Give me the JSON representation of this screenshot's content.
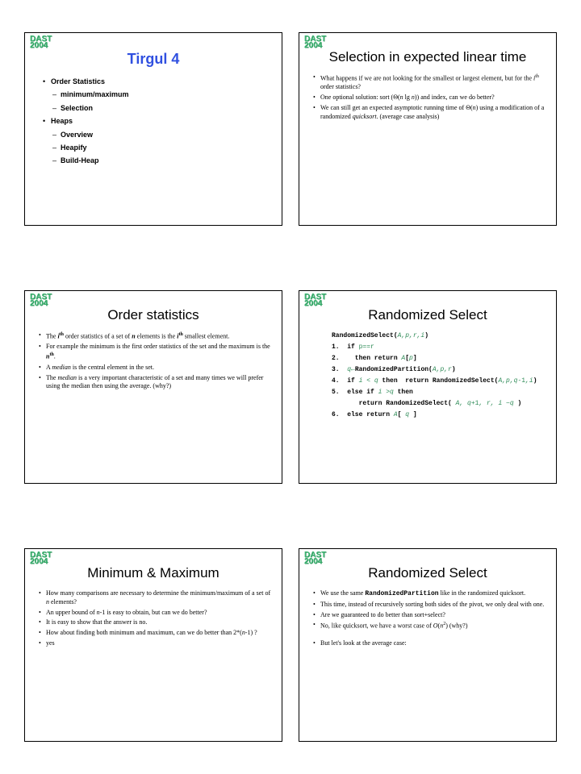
{
  "logo_text": "DAST",
  "logo_sub": "2004",
  "slides": [
    {
      "title_style": "blue",
      "title": "Tirgul 4",
      "content_style": "arial",
      "lines": [
        {
          "level": "b1a",
          "html": "<span class='bold'>Order Statistics</span>"
        },
        {
          "level": "b2a",
          "html": "<span class='bold'>minimum/maximum</span>"
        },
        {
          "level": "b2a",
          "html": "<span class='bold'>Selection</span>"
        },
        {
          "level": "b1a",
          "html": "<span class='bold'>Heaps</span>"
        },
        {
          "level": "b2a",
          "html": "<span class='bold'>Overview</span>"
        },
        {
          "level": "b2a",
          "html": "<span class='bold'>Heapify</span>"
        },
        {
          "level": "b2a",
          "html": "<span class='bold'>Build-Heap</span>"
        }
      ]
    },
    {
      "title_style": "black",
      "title": "Selection in expected linear time",
      "content_style": "times",
      "lines": [
        {
          "level": "b1",
          "html": "What happens if we are not looking for the smallest or largest element, but for the <span class='italic'>i</span><span class='sup'>th</span> order statistics?"
        },
        {
          "level": "b1",
          "html": "One optional solution: sort (Θ(<span class='italic'>n</span> lg <span class='italic'>n</span>)) and index, can we do better?"
        },
        {
          "level": "b1",
          "html": "We can still get an expected asymptotic running time of Θ(<span class='italic'>n</span>) using a modification of a randomized <span class='italic'>quicksort</span>. (average case analysis)"
        }
      ]
    },
    {
      "title_style": "black",
      "title": "Order statistics",
      "content_style": "times",
      "lines": [
        {
          "level": "b1",
          "html": "The <span class='bold italic'>i</span><span class='bold sup'>th</span> order statistics of a set of <span class='bold italic'>n</span> elements is the <span class='bold italic'>i</span><span class='bold sup'>th</span> smallest element."
        },
        {
          "level": "b1",
          "html": "For example the minimum is the first order statistics of the set and the maximum is the <span class='bold italic'>n</span><span class='bold sup'>th</span>."
        },
        {
          "level": "b1",
          "html": "A <span class='italic'>median</span> is the central element in the set."
        },
        {
          "level": "b1",
          "html": "The <span class='italic'>median</span> is a very important characteristic of a set and many times we will prefer using the median then using the average. (why?)"
        }
      ]
    },
    {
      "title_style": "black",
      "title": "Randomized Select",
      "content_style": "code",
      "lines": [
        {
          "html": "<span class='bold'>RandomizedSelect(</span><span class='cgreen italic'>A,p,r,i</span><span class='bold'>)</span>"
        },
        {
          "html": "<span class='bold'>1.  if </span><span class='cgreen'>p==r</span>"
        },
        {
          "html": "<span class='bold'>2.    then return </span><span class='cgreen italic'>A</span><span class='bold'>[</span><span class='cgreen italic'>p</span><span class='bold'>]</span>"
        },
        {
          "html": "<span class='bold'>3.  </span><span class='cgreen italic'>q</span><span class='cgreen'>←</span><span class='bold'>RandomizedPartition(</span><span class='cgreen italic'>A,p,r</span><span class='bold'>)</span>"
        },
        {
          "html": "<span class='bold'>4.  if </span><span class='cgreen italic'>i &lt; q</span><span class='bold'> then  return RandomizedSelect(</span><span class='cgreen italic'>A,p,q</span><span class='cgreen'>-1</span><span class='cgreen italic'>,i</span><span class='bold'>)</span>"
        },
        {
          "html": "<span class='bold'>5.  else if </span><span class='cgreen italic'>i &gt;q</span><span class='bold'> then</span>"
        },
        {
          "html": "       <span class='bold'>return RandomizedSelect(</span><span class='cgreen italic'> A, q</span><span class='cgreen'>+1</span><span class='cgreen italic'>, r, i −q </span><span class='bold'>)</span>"
        },
        {
          "html": "<span class='bold'>6.  else return </span><span class='cgreen italic'>A</span><span class='bold'>[</span><span class='cgreen italic'> q </span><span class='bold'>]</span>"
        }
      ]
    },
    {
      "title_style": "black",
      "title": "Minimum & Maximum",
      "content_style": "times",
      "lines": [
        {
          "level": "b1",
          "html": "How many comparisons are necessary to determine the minimum/maximum of a set of <span class='italic'>n</span> elements?"
        },
        {
          "level": "b1",
          "html": "An upper bound of <span class='italic'>n</span>-1 is easy to obtain, but can we do better?"
        },
        {
          "level": "b1",
          "html": "It is easy to show that the answer is no."
        },
        {
          "level": "b1",
          "html": "How about finding both minimum and maximum, can we do better than 2*(<span class='italic'>n</span>-1) ?"
        },
        {
          "level": "b1",
          "html": "yes"
        }
      ]
    },
    {
      "title_style": "black",
      "title": "Randomized Select",
      "content_style": "times",
      "lines": [
        {
          "level": "b1",
          "html": "We use the same <span class='bold' style='font-family:Courier New,monospace'>RandomizedPartition</span> like in the randomized quicksort."
        },
        {
          "level": "b1",
          "html": "This time, instead of recursively sorting both sides of the pivot, we only deal with one."
        },
        {
          "level": "b1",
          "html": "Are we guaranteed to do better than sort+select?"
        },
        {
          "level": "b1",
          "html": "No, like quicksort, we have a worst case of <span class='italic'>O</span>(<span class='italic'>n</span><span class='sup'>2</span>) (why?)"
        },
        {
          "level": "spacer",
          "html": ""
        },
        {
          "level": "b1",
          "html": "But let's look at the average case:"
        }
      ]
    }
  ]
}
